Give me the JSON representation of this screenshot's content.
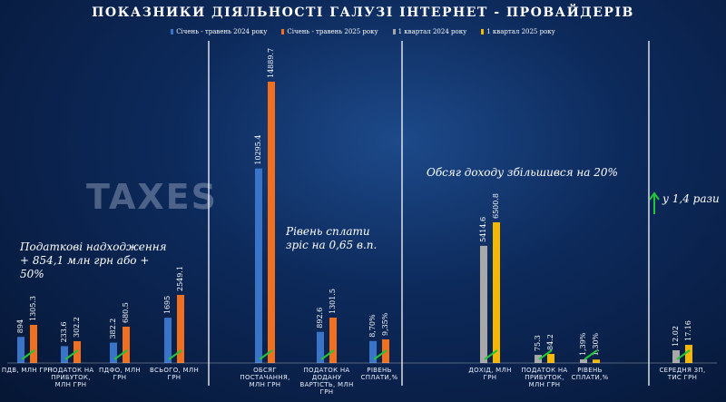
{
  "chart_data": {
    "type": "bar",
    "title": "ПОКАЗНИКИ ДІЯЛЬНОСТІ ГАЛУЗІ ІНТЕРНЕТ - ПРОВАЙДЕРІВ",
    "background_text": "TAXES",
    "categories": [
      "ПДВ, МЛН ГРН",
      "ПОДАТОК НА ПРИБУТОК, МЛН ГРН",
      "ПДФО, МЛН ГРН",
      "ВСЬОГО, МЛН ГРН",
      "ОБСЯГ ПОСТАЧАННЯ, МЛН ГРН",
      "ПОДАТОК НА ДОДАНУ ВАРТІСТЬ, МЛН ГРН",
      "РІВЕНЬ СПЛАТИ,%",
      "ДОХІД, МЛН ГРН",
      "ПОДАТОК НА ПРИБУТОК, МЛН ГРН",
      "РІВЕНЬ СПЛАТИ,%",
      "СЕРЕДНЯ ЗП, ТИС ГРН"
    ],
    "series": [
      {
        "name": "Січень - травень 2024 року",
        "color": "#3a74c8",
        "values": [
          894,
          233.6,
          382.2,
          1695,
          10295.4,
          892.6,
          8.7,
          null,
          null,
          null,
          null
        ],
        "value_labels": [
          "894",
          "233.6",
          "382.2",
          "1695",
          "10295.4",
          "892.6",
          "8,70%",
          null,
          null,
          null,
          null
        ]
      },
      {
        "name": "Січень - травень 2025 року",
        "color": "#f07020",
        "values": [
          1305.3,
          302.2,
          680.5,
          2549.1,
          14889.7,
          1301.5,
          9.35,
          null,
          null,
          null,
          null
        ],
        "value_labels": [
          "1305.3",
          "302.2",
          "680.5",
          "2549.1",
          "14889.7",
          "1301.5",
          "9,35%",
          null,
          null,
          null,
          null
        ]
      },
      {
        "name": "1 квартал 2024 року",
        "color": "#a8a8a8",
        "values": [
          null,
          null,
          null,
          null,
          null,
          null,
          null,
          5414.6,
          75.3,
          1.39,
          12.02
        ],
        "value_labels": [
          null,
          null,
          null,
          null,
          null,
          null,
          null,
          "5414.6",
          "75.3",
          "1,39%",
          "12.02"
        ]
      },
      {
        "name": "1 квартал 2025 року",
        "color": "#f5b800",
        "values": [
          null,
          null,
          null,
          null,
          null,
          null,
          null,
          6500.8,
          84.2,
          1.3,
          17.16
        ],
        "value_labels": [
          null,
          null,
          null,
          null,
          null,
          null,
          null,
          "6500.8",
          "84.2",
          "1,30%",
          "17.16"
        ]
      }
    ],
    "annotations": [
      "Податкові надходження + 854,1 млн грн або + 50%",
      "Рівень сплати зріс на 0,65 в.п.",
      "Обсяг доходу збільшився на 20%",
      "у 1,4 рази"
    ]
  }
}
